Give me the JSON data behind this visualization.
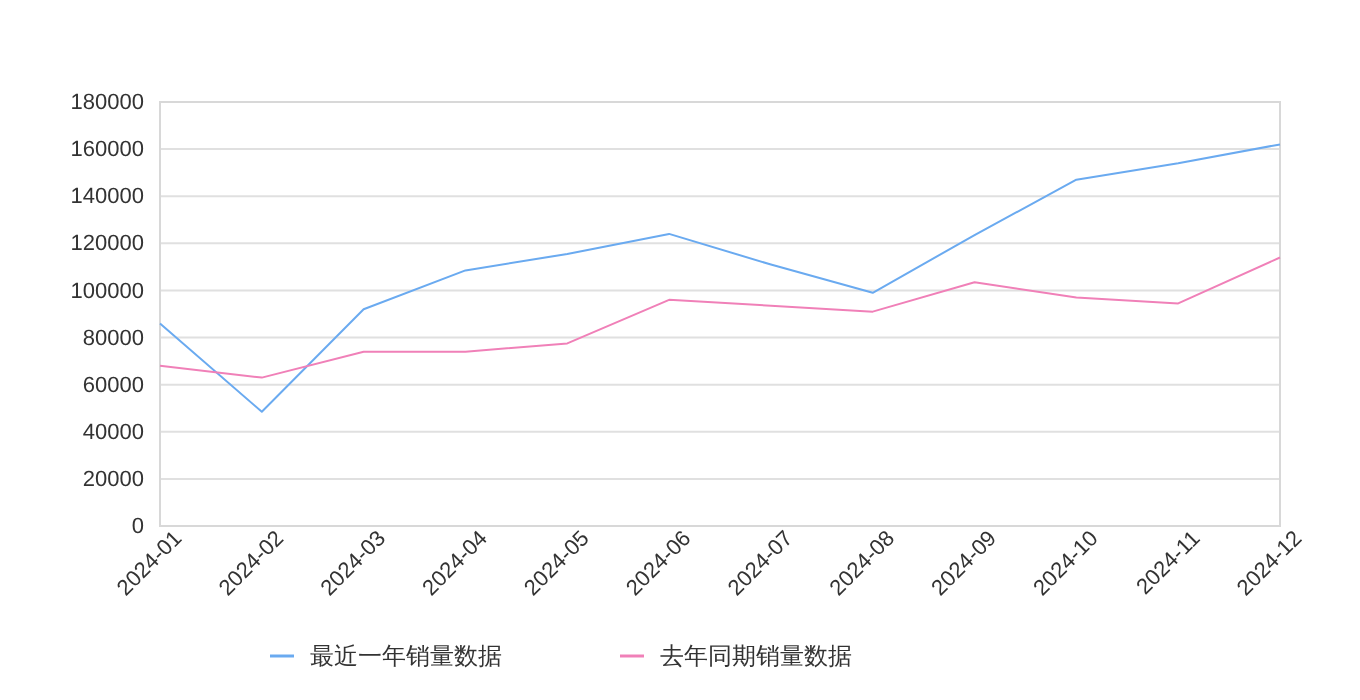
{
  "chart_data": {
    "type": "line",
    "categories": [
      "2024-01",
      "2024-02",
      "2024-03",
      "2024-04",
      "2024-05",
      "2024-06",
      "2024-07",
      "2024-08",
      "2024-09",
      "2024-10",
      "2024-11",
      "2024-12"
    ],
    "series": [
      {
        "name": "最近一年销量数据",
        "color": "#6aaaf0",
        "values": [
          86000,
          48500,
          92000,
          108500,
          115500,
          124000,
          111000,
          99000,
          123500,
          147000,
          154000,
          162000
        ]
      },
      {
        "name": "去年同期销量数据",
        "color": "#f080b8",
        "values": [
          68000,
          63000,
          74000,
          74000,
          77500,
          96000,
          93500,
          91000,
          103500,
          97000,
          94500,
          114000
        ]
      }
    ],
    "ylim": [
      0,
      180000
    ],
    "yticks": [
      0,
      20000,
      40000,
      60000,
      80000,
      100000,
      120000,
      140000,
      160000,
      180000
    ],
    "grid": "y",
    "legend": "bottom",
    "marker": "none",
    "line_style": "solid"
  }
}
